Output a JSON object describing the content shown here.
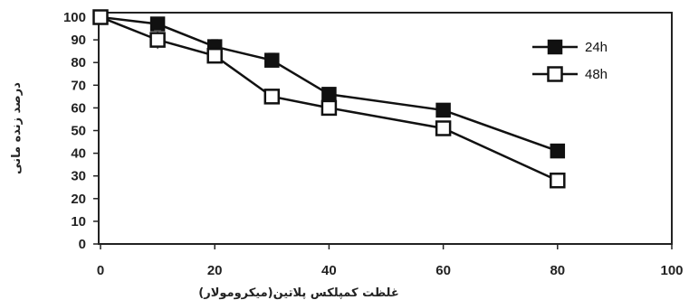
{
  "chart_data": {
    "type": "line",
    "xlabel": "غلظت کمپلکس پلاتین(میکرومولار)",
    "ylabel": "درصد زنده مانی",
    "xlim": [
      0,
      100
    ],
    "ylim": [
      0,
      100
    ],
    "xticks": [
      0,
      20,
      40,
      60,
      80,
      100
    ],
    "yticks": [
      0,
      10,
      20,
      30,
      40,
      50,
      60,
      70,
      80,
      90,
      100
    ],
    "grid": false,
    "legend_position": "top-right",
    "series": [
      {
        "name": "24h",
        "marker": "filled-square",
        "color": "#111111",
        "x": [
          0,
          10,
          20,
          30,
          40,
          60,
          80
        ],
        "y": [
          100,
          97,
          87,
          81,
          66,
          59,
          41
        ],
        "error": [
          0,
          2,
          3,
          3,
          2,
          0,
          0
        ]
      },
      {
        "name": "48h",
        "marker": "open-square",
        "color": "#111111",
        "x": [
          0,
          10,
          20,
          30,
          40,
          60,
          80
        ],
        "y": [
          100,
          90,
          83,
          65,
          60,
          51,
          28
        ],
        "error": [
          0,
          4,
          2,
          0,
          0,
          0,
          0
        ]
      }
    ]
  }
}
